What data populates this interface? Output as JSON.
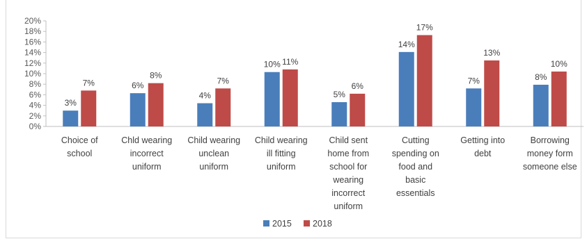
{
  "chart_data": {
    "type": "bar",
    "title": "",
    "xlabel": "",
    "ylabel": "",
    "ylim": [
      0,
      20
    ],
    "y_ticks": [
      "0%",
      "2%",
      "4%",
      "6%",
      "8%",
      "10%",
      "12%",
      "14%",
      "16%",
      "18%",
      "20%"
    ],
    "grid": false,
    "legend": "bottom",
    "categories": [
      [
        "Choice of",
        "school"
      ],
      [
        "Chld wearing",
        "incorrect",
        "uniform"
      ],
      [
        "Child wearing",
        "unclean",
        "uniform"
      ],
      [
        "Child wearing",
        "ill fitting",
        "uniform"
      ],
      [
        "Child sent",
        "home from",
        "school for",
        "wearing",
        "incorrect",
        "uniform"
      ],
      [
        "Cutting",
        "spending on",
        "food and",
        "basic",
        "essentials"
      ],
      [
        "Getting into",
        "debt"
      ],
      [
        "Borrowing",
        "money form",
        "someone else"
      ]
    ],
    "series": [
      {
        "name": "2015",
        "color": "#4a7ebb",
        "values": [
          3,
          6.3,
          4.4,
          10.3,
          4.6,
          14.1,
          7.2,
          7.9
        ],
        "labels": [
          "3%",
          "6%",
          "4%",
          "10%",
          "5%",
          "14%",
          "7%",
          "8%"
        ]
      },
      {
        "name": "2018",
        "color": "#be4b48",
        "values": [
          6.8,
          8.2,
          7.2,
          10.8,
          6.2,
          17.3,
          12.5,
          10.4
        ],
        "labels": [
          "7%",
          "8%",
          "7%",
          "11%",
          "6%",
          "17%",
          "13%",
          "10%"
        ]
      }
    ]
  }
}
